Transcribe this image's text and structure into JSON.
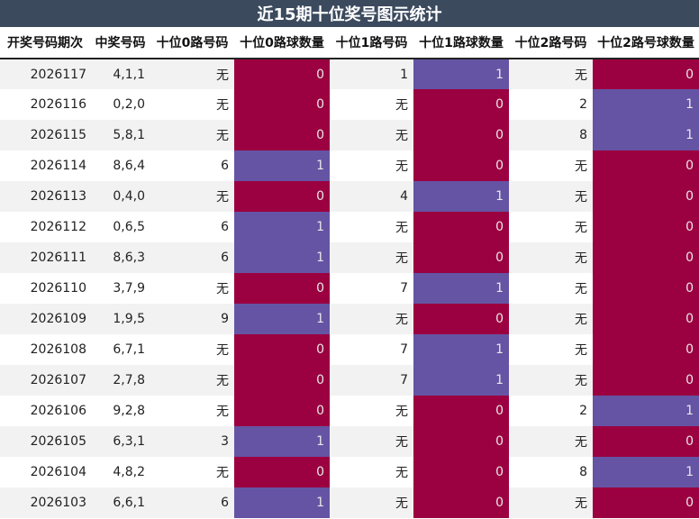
{
  "title": "近15期十位奖号图示统计",
  "colors": {
    "count_zero": "#9b0040",
    "count_one": "#6554a4",
    "title_bg": "#3c4a5e"
  },
  "headers": [
    "开奖号码期次",
    "中奖号码",
    "十位0路号码",
    "十位0路球数量",
    "十位1路号码",
    "十位1路球数量",
    "十位2路号码",
    "十位2路号球数量"
  ],
  "rows": [
    [
      "2026117",
      "4,1,1",
      "无",
      "0",
      "1",
      "1",
      "无",
      "0"
    ],
    [
      "2026116",
      "0,2,0",
      "无",
      "0",
      "无",
      "0",
      "2",
      "1"
    ],
    [
      "2026115",
      "5,8,1",
      "无",
      "0",
      "无",
      "0",
      "8",
      "1"
    ],
    [
      "2026114",
      "8,6,4",
      "6",
      "1",
      "无",
      "0",
      "无",
      "0"
    ],
    [
      "2026113",
      "0,4,0",
      "无",
      "0",
      "4",
      "1",
      "无",
      "0"
    ],
    [
      "2026112",
      "0,6,5",
      "6",
      "1",
      "无",
      "0",
      "无",
      "0"
    ],
    [
      "2026111",
      "8,6,3",
      "6",
      "1",
      "无",
      "0",
      "无",
      "0"
    ],
    [
      "2026110",
      "3,7,9",
      "无",
      "0",
      "7",
      "1",
      "无",
      "0"
    ],
    [
      "2026109",
      "1,9,5",
      "9",
      "1",
      "无",
      "0",
      "无",
      "0"
    ],
    [
      "2026108",
      "6,7,1",
      "无",
      "0",
      "7",
      "1",
      "无",
      "0"
    ],
    [
      "2026107",
      "2,7,8",
      "无",
      "0",
      "7",
      "1",
      "无",
      "0"
    ],
    [
      "2026106",
      "9,2,8",
      "无",
      "0",
      "无",
      "0",
      "2",
      "1"
    ],
    [
      "2026105",
      "6,3,1",
      "3",
      "1",
      "无",
      "0",
      "无",
      "0"
    ],
    [
      "2026104",
      "4,8,2",
      "无",
      "0",
      "无",
      "0",
      "8",
      "1"
    ],
    [
      "2026103",
      "6,6,1",
      "6",
      "1",
      "无",
      "0",
      "无",
      "0"
    ]
  ]
}
